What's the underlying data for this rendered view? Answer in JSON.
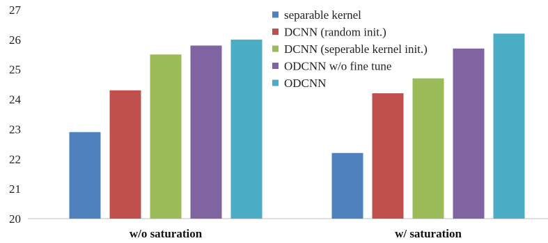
{
  "chart_data": {
    "type": "bar",
    "title": "",
    "xlabel": "",
    "ylabel": "",
    "categories": [
      "w/o saturation",
      "w/ saturation"
    ],
    "ylim": [
      20,
      27
    ],
    "yticks": [
      20,
      21,
      22,
      23,
      24,
      25,
      26,
      27
    ],
    "grid": false,
    "legend_position": "top-right",
    "series": [
      {
        "name": "separable kernel",
        "color": "#4f81bd",
        "values": [
          22.9,
          22.2
        ]
      },
      {
        "name": "DCNN (random init.)",
        "color": "#c0504d",
        "values": [
          24.3,
          24.2
        ]
      },
      {
        "name": "DCNN (seperable kernel init.)",
        "color": "#9bbb59",
        "values": [
          25.5,
          24.7
        ]
      },
      {
        "name": "ODCNN w/o fine tune",
        "color": "#8064a2",
        "values": [
          25.8,
          25.7
        ]
      },
      {
        "name": "ODCNN",
        "color": "#4bacc6",
        "values": [
          26.0,
          26.2
        ]
      }
    ]
  }
}
